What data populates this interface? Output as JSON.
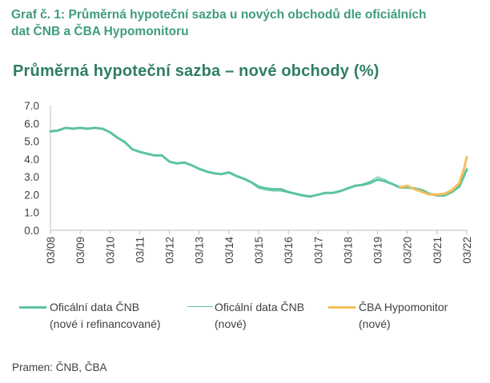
{
  "heading": {
    "line1": "Graf č. 1: Průměrná hypoteční sazba u nových obchodů dle oficiálních",
    "line2": "dat ČNB a ČBA Hypomonitoru"
  },
  "source": "Pramen: ČNB, ČBA",
  "chart_data": {
    "type": "line",
    "title": "Průměrná hypoteční sazba – nové obchody (%)",
    "xlabel": "",
    "ylabel": "",
    "ylim": [
      0,
      7
    ],
    "y_ticks": [
      "0.0",
      "1.0",
      "2.0",
      "3.0",
      "4.0",
      "5.0",
      "6.0",
      "7.0"
    ],
    "x_ticks": [
      "03/08",
      "03/09",
      "03/10",
      "03/11",
      "03/12",
      "03/13",
      "03/14",
      "03/15",
      "03/16",
      "03/17",
      "03/18",
      "03/19",
      "03/20",
      "03/21",
      "03/22"
    ],
    "x_range": [
      "03/08",
      "03/22"
    ],
    "grid": false,
    "legend_position": "bottom",
    "series": [
      {
        "name": "Oficální data ČNB (nové i refinancované)",
        "color": "#5cc49c",
        "style": "thick",
        "points": [
          [
            "03/08",
            5.55
          ],
          [
            "06/08",
            5.6
          ],
          [
            "09/08",
            5.75
          ],
          [
            "12/08",
            5.7
          ],
          [
            "03/09",
            5.75
          ],
          [
            "06/09",
            5.7
          ],
          [
            "09/09",
            5.75
          ],
          [
            "12/09",
            5.7
          ],
          [
            "03/10",
            5.5
          ],
          [
            "06/10",
            5.2
          ],
          [
            "09/10",
            4.95
          ],
          [
            "12/10",
            4.55
          ],
          [
            "03/11",
            4.4
          ],
          [
            "06/11",
            4.3
          ],
          [
            "09/11",
            4.2
          ],
          [
            "12/11",
            4.2
          ],
          [
            "03/12",
            3.85
          ],
          [
            "06/12",
            3.75
          ],
          [
            "09/12",
            3.8
          ],
          [
            "12/12",
            3.65
          ],
          [
            "03/13",
            3.45
          ],
          [
            "06/13",
            3.3
          ],
          [
            "09/13",
            3.2
          ],
          [
            "12/13",
            3.15
          ],
          [
            "03/14",
            3.25
          ],
          [
            "06/14",
            3.05
          ],
          [
            "09/14",
            2.9
          ],
          [
            "12/14",
            2.7
          ],
          [
            "03/15",
            2.45
          ],
          [
            "06/15",
            2.35
          ],
          [
            "09/15",
            2.3
          ],
          [
            "12/15",
            2.3
          ],
          [
            "03/16",
            2.15
          ],
          [
            "06/16",
            2.05
          ],
          [
            "09/16",
            1.95
          ],
          [
            "12/16",
            1.9
          ],
          [
            "03/17",
            2.0
          ],
          [
            "06/17",
            2.1
          ],
          [
            "09/17",
            2.1
          ],
          [
            "12/17",
            2.2
          ],
          [
            "03/18",
            2.35
          ],
          [
            "06/18",
            2.5
          ],
          [
            "09/18",
            2.55
          ],
          [
            "12/18",
            2.65
          ],
          [
            "03/19",
            2.85
          ],
          [
            "06/19",
            2.75
          ],
          [
            "09/19",
            2.6
          ],
          [
            "12/19",
            2.4
          ],
          [
            "03/20",
            2.4
          ],
          [
            "06/20",
            2.35
          ],
          [
            "09/20",
            2.25
          ],
          [
            "12/20",
            2.05
          ],
          [
            "03/21",
            1.95
          ],
          [
            "06/21",
            1.95
          ],
          [
            "09/21",
            2.15
          ],
          [
            "12/21",
            2.45
          ],
          [
            "03/22",
            3.4
          ]
        ]
      },
      {
        "name": "Oficální data ČNB (nové)",
        "color": "#5cc49c",
        "style": "thin",
        "points": [
          [
            "06/14",
            3.0
          ],
          [
            "09/14",
            2.85
          ],
          [
            "12/14",
            2.65
          ],
          [
            "03/15",
            2.35
          ],
          [
            "06/15",
            2.25
          ],
          [
            "09/15",
            2.2
          ],
          [
            "12/15",
            2.2
          ],
          [
            "03/16",
            2.1
          ],
          [
            "06/16",
            2.0
          ],
          [
            "09/16",
            1.9
          ],
          [
            "12/16",
            1.85
          ],
          [
            "03/17",
            2.0
          ],
          [
            "06/17",
            2.05
          ],
          [
            "09/17",
            2.1
          ],
          [
            "12/17",
            2.2
          ],
          [
            "03/18",
            2.4
          ],
          [
            "06/18",
            2.5
          ],
          [
            "09/18",
            2.6
          ],
          [
            "12/18",
            2.75
          ],
          [
            "03/19",
            3.0
          ],
          [
            "06/19",
            2.85
          ],
          [
            "09/19",
            2.6
          ],
          [
            "12/19",
            2.45
          ],
          [
            "03/20",
            2.4
          ],
          [
            "06/20",
            2.35
          ],
          [
            "09/20",
            2.2
          ],
          [
            "12/20",
            2.05
          ],
          [
            "03/21",
            1.95
          ],
          [
            "06/21",
            2.0
          ],
          [
            "09/21",
            2.2
          ],
          [
            "12/21",
            2.5
          ],
          [
            "03/22",
            3.5
          ]
        ]
      },
      {
        "name": "ČBA Hypomonitor (nové)",
        "color": "#f5be5c",
        "style": "thick",
        "points": [
          [
            "12/19",
            2.4
          ],
          [
            "03/20",
            2.5
          ],
          [
            "06/20",
            2.3
          ],
          [
            "09/20",
            2.15
          ],
          [
            "12/20",
            2.0
          ],
          [
            "03/21",
            2.0
          ],
          [
            "06/21",
            2.05
          ],
          [
            "09/21",
            2.25
          ],
          [
            "12/21",
            2.65
          ],
          [
            "02/22",
            3.5
          ],
          [
            "03/22",
            4.1
          ]
        ]
      }
    ]
  },
  "legend": [
    {
      "line1": "Oficální data ČNB",
      "line2": "(nové i refinancované)"
    },
    {
      "line1": "Oficální data ČNB",
      "line2": "(nové)"
    },
    {
      "line1": "ČBA Hypomonitor",
      "line2": "(nové)"
    }
  ]
}
